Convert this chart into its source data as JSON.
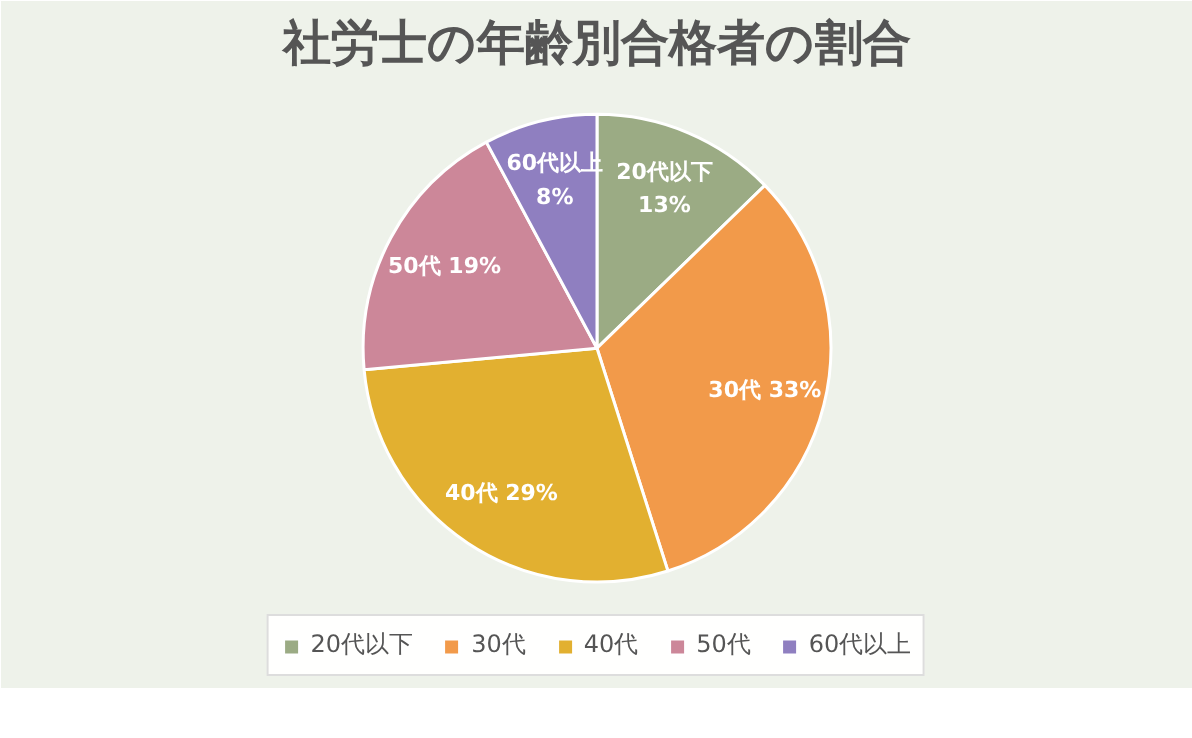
{
  "chart_data": {
    "type": "pie",
    "title": "社労士の年齢別合格者の割合",
    "categories": [
      "20代以下",
      "30代",
      "40代",
      "50代",
      "60代以上"
    ],
    "values": [
      13,
      33,
      29,
      19,
      8
    ],
    "value_labels": [
      "13%",
      "33%",
      "29%",
      "19%",
      "8%"
    ],
    "colors": [
      "#9bab84",
      "#f29a4a",
      "#e2b030",
      "#cc8799",
      "#8f7fc0"
    ],
    "legend": "bottom"
  }
}
